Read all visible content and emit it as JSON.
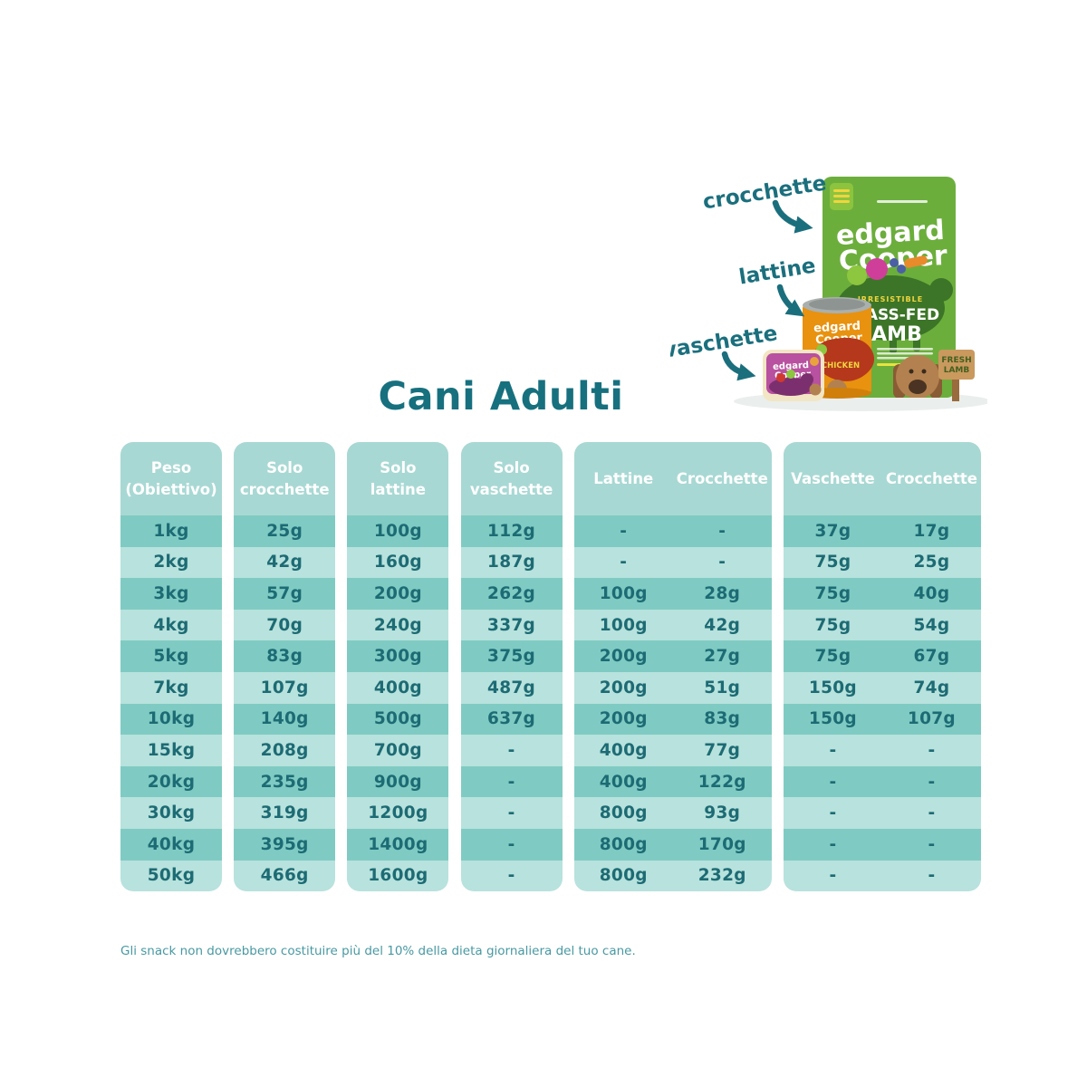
{
  "page": {
    "title": "Cani Adulti",
    "footnote": "Gli snack non dovrebbero costituire più del 10% della dieta giornaliera del tuo cane."
  },
  "colors": {
    "accent_teal": "#1b6f7d",
    "title_teal": "#17707e",
    "header_bg": "#a8d8d3",
    "row_dark": "#7fcbc3",
    "row_light": "#b8e2dd",
    "cell_text": "#1d6b74",
    "footnote_text": "#4899a2",
    "bag_green": "#6cae3c",
    "can_orange": "#e8920f",
    "tray_purple": "#b8519f"
  },
  "products": {
    "labels": {
      "kibble": "crocchette",
      "can": "lattine",
      "tray": "vaschette"
    },
    "bag": {
      "brand_line1": "edgard",
      "brand_line2": "Cooper",
      "claim": "IRRESISTIBLE",
      "name_line1": "GRASS-FED",
      "name_line2": "LAMB",
      "sign_line1": "FRESH",
      "sign_line2": "LAMB"
    },
    "can": {
      "brand_line1": "edgard",
      "brand_line2": "Cooper",
      "flavor": "CHICKEN"
    },
    "tray": {
      "brand_line1": "edgard",
      "brand_line2": "Cooper"
    }
  },
  "table": {
    "blocks": [
      {
        "id": "peso",
        "headers": [
          "Peso\n(Obiettivo)"
        ],
        "rows": [
          "1kg",
          "2kg",
          "3kg",
          "4kg",
          "5kg",
          "7kg",
          "10kg",
          "15kg",
          "20kg",
          "30kg",
          "40kg",
          "50kg"
        ]
      },
      {
        "id": "solo-crocchette",
        "headers": [
          "Solo\ncrocchette"
        ],
        "rows": [
          "25g",
          "42g",
          "57g",
          "70g",
          "83g",
          "107g",
          "140g",
          "208g",
          "235g",
          "319g",
          "395g",
          "466g"
        ]
      },
      {
        "id": "solo-lattine",
        "headers": [
          "Solo\nlattine"
        ],
        "rows": [
          "100g",
          "160g",
          "200g",
          "240g",
          "300g",
          "400g",
          "500g",
          "700g",
          "900g",
          "1200g",
          "1400g",
          "1600g"
        ]
      },
      {
        "id": "solo-vaschette",
        "headers": [
          "Solo\nvaschette"
        ],
        "rows": [
          "112g",
          "187g",
          "262g",
          "337g",
          "375g",
          "487g",
          "637g",
          "-",
          "-",
          "-",
          "-",
          "-"
        ]
      },
      {
        "id": "lattine-crocchette",
        "headers": [
          "Lattine",
          "Crocchette"
        ],
        "rows": [
          [
            "-",
            "-"
          ],
          [
            "-",
            "-"
          ],
          [
            "100g",
            "28g"
          ],
          [
            "100g",
            "42g"
          ],
          [
            "200g",
            "27g"
          ],
          [
            "200g",
            "51g"
          ],
          [
            "200g",
            "83g"
          ],
          [
            "400g",
            "77g"
          ],
          [
            "400g",
            "122g"
          ],
          [
            "800g",
            "93g"
          ],
          [
            "800g",
            "170g"
          ],
          [
            "800g",
            "232g"
          ]
        ]
      },
      {
        "id": "vaschette-crocchette",
        "headers": [
          "Vaschette",
          "Crocchette"
        ],
        "rows": [
          [
            "37g",
            "17g"
          ],
          [
            "75g",
            "25g"
          ],
          [
            "75g",
            "40g"
          ],
          [
            "75g",
            "54g"
          ],
          [
            "75g",
            "67g"
          ],
          [
            "150g",
            "74g"
          ],
          [
            "150g",
            "107g"
          ],
          [
            "-",
            "-"
          ],
          [
            "-",
            "-"
          ],
          [
            "-",
            "-"
          ],
          [
            "-",
            "-"
          ],
          [
            "-",
            "-"
          ]
        ]
      }
    ]
  },
  "chart_data": {
    "type": "table",
    "title": "Cani Adulti",
    "columns": [
      "Peso (Obiettivo)",
      "Solo crocchette",
      "Solo lattine",
      "Solo vaschette",
      "Lattine",
      "Crocchette",
      "Vaschette",
      "Crocchette"
    ],
    "rows": [
      [
        "1kg",
        "25g",
        "100g",
        "112g",
        "-",
        "-",
        "37g",
        "17g"
      ],
      [
        "2kg",
        "42g",
        "160g",
        "187g",
        "-",
        "-",
        "75g",
        "25g"
      ],
      [
        "3kg",
        "57g",
        "200g",
        "262g",
        "100g",
        "28g",
        "75g",
        "40g"
      ],
      [
        "4kg",
        "70g",
        "240g",
        "337g",
        "100g",
        "42g",
        "75g",
        "54g"
      ],
      [
        "5kg",
        "83g",
        "300g",
        "375g",
        "200g",
        "27g",
        "75g",
        "67g"
      ],
      [
        "7kg",
        "107g",
        "400g",
        "487g",
        "200g",
        "51g",
        "150g",
        "74g"
      ],
      [
        "10kg",
        "140g",
        "500g",
        "637g",
        "200g",
        "83g",
        "150g",
        "107g"
      ],
      [
        "15kg",
        "208g",
        "700g",
        "-",
        "400g",
        "77g",
        "-",
        "-"
      ],
      [
        "20kg",
        "235g",
        "900g",
        "-",
        "400g",
        "122g",
        "-",
        "-"
      ],
      [
        "30kg",
        "319g",
        "1200g",
        "-",
        "800g",
        "93g",
        "-",
        "-"
      ],
      [
        "40kg",
        "395g",
        "1400g",
        "-",
        "800g",
        "170g",
        "-",
        "-"
      ],
      [
        "50kg",
        "466g",
        "1600g",
        "-",
        "800g",
        "232g",
        "-",
        "-"
      ]
    ],
    "footnote": "Gli snack non dovrebbero costituire più del 10% della dieta giornaliera del tuo cane."
  }
}
